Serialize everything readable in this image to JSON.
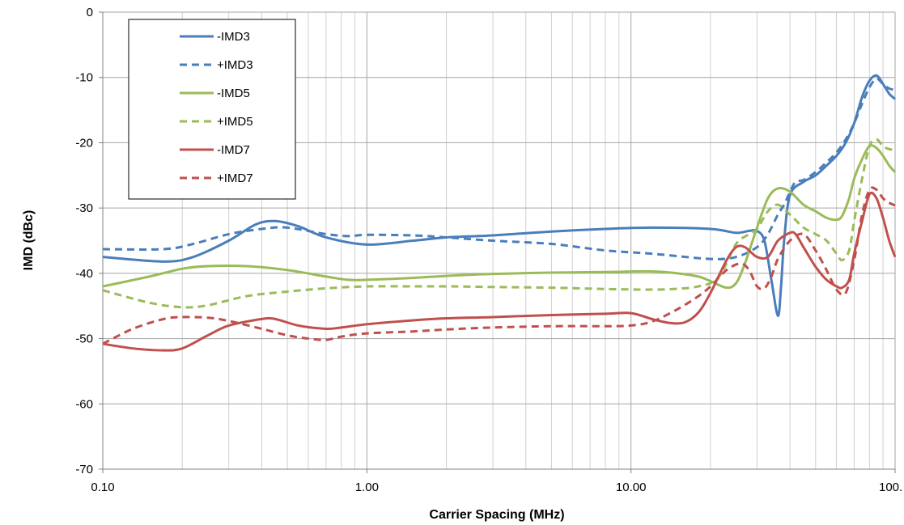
{
  "chart_data": {
    "type": "line",
    "xlabel": "Carrier Spacing (MHz)",
    "ylabel": "IMD (dBc)",
    "x_scale": "log",
    "xlim": [
      0.1,
      100
    ],
    "ylim": [
      -70,
      0
    ],
    "x_ticks": [
      0.1,
      1,
      10,
      100
    ],
    "x_tick_labels": [
      "0.10",
      "1.00",
      "10.00",
      "100."
    ],
    "y_ticks": [
      0,
      -10,
      -20,
      -30,
      -40,
      -50,
      -60,
      -70
    ],
    "y_tick_labels": [
      "0",
      "-10",
      "-20",
      "-30",
      "-40",
      "-50",
      "-60",
      "-70"
    ],
    "grid": true,
    "legend_position": "top-left",
    "series": [
      {
        "name": "-IMD3",
        "color": "#4a7ebb",
        "dash": "solid",
        "x": [
          0.1,
          0.17,
          0.22,
          0.3,
          0.38,
          0.45,
          0.55,
          0.7,
          1.0,
          1.5,
          2,
          3,
          5,
          8,
          12,
          20,
          25,
          28,
          30,
          32,
          34,
          36,
          37,
          38,
          40,
          45,
          50,
          55,
          60,
          65,
          70,
          75,
          80,
          85,
          90,
          95,
          100
        ],
        "y": [
          -37.5,
          -38.2,
          -37.5,
          -35,
          -32.5,
          -32,
          -32.8,
          -34.5,
          -35.6,
          -35,
          -34.5,
          -34.2,
          -33.6,
          -33.2,
          -33,
          -33.2,
          -33.8,
          -33.5,
          -33.5,
          -35,
          -41,
          -46.5,
          -42,
          -35,
          -28,
          -26,
          -25,
          -23.5,
          -22,
          -20,
          -17,
          -13,
          -10.5,
          -9.7,
          -11,
          -12.5,
          -13.3
        ]
      },
      {
        "name": "+IMD3",
        "color": "#4a7ebb",
        "dash": "dashed",
        "x": [
          0.1,
          0.17,
          0.22,
          0.3,
          0.4,
          0.5,
          0.7,
          0.85,
          1.0,
          1.5,
          2,
          3,
          5,
          8,
          12,
          20,
          25,
          30,
          33,
          36,
          38,
          40,
          42,
          45,
          50,
          55,
          60,
          65,
          70,
          75,
          80,
          85,
          90,
          95,
          100
        ],
        "y": [
          -36.3,
          -36.3,
          -35.5,
          -34,
          -33.2,
          -33,
          -34,
          -34.3,
          -34.1,
          -34.2,
          -34.5,
          -35,
          -35.5,
          -36.5,
          -37,
          -37.8,
          -37.5,
          -36,
          -34,
          -31,
          -29.5,
          -27.5,
          -26,
          -25.7,
          -24.5,
          -23,
          -21.5,
          -19.5,
          -17,
          -14,
          -11.5,
          -10.2,
          -11,
          -11.7,
          -11.9
        ]
      },
      {
        "name": "-IMD5",
        "color": "#9bbb59",
        "dash": "solid",
        "x": [
          0.1,
          0.15,
          0.2,
          0.25,
          0.35,
          0.5,
          0.7,
          0.85,
          1.0,
          1.5,
          2,
          3,
          5,
          8,
          12,
          15,
          18,
          20,
          23,
          25,
          27,
          30,
          33,
          36,
          40,
          45,
          50,
          55,
          60,
          63,
          67,
          70,
          75,
          80,
          85,
          90,
          95,
          100
        ],
        "y": [
          -42,
          -40.5,
          -39.3,
          -38.9,
          -38.9,
          -39.5,
          -40.5,
          -41,
          -41,
          -40.7,
          -40.4,
          -40.1,
          -39.9,
          -39.8,
          -39.7,
          -40,
          -40.5,
          -41.2,
          -42.2,
          -41.5,
          -38.5,
          -33,
          -28.5,
          -27,
          -27.5,
          -29.5,
          -30.5,
          -31.5,
          -31.8,
          -31.2,
          -28.5,
          -25.5,
          -22.5,
          -20.5,
          -20.8,
          -22,
          -23.5,
          -24.5
        ]
      },
      {
        "name": "+IMD5",
        "color": "#9bbb59",
        "dash": "dashed",
        "x": [
          0.1,
          0.15,
          0.2,
          0.25,
          0.35,
          0.5,
          0.7,
          1.0,
          1.5,
          2,
          3,
          5,
          8,
          12,
          16,
          18,
          20,
          22,
          25,
          28,
          30,
          33,
          36,
          40,
          45,
          50,
          55,
          60,
          63,
          67,
          70,
          75,
          80,
          85,
          90,
          95,
          100
        ],
        "y": [
          -42.6,
          -44.5,
          -45.2,
          -44.9,
          -43.5,
          -42.8,
          -42.3,
          -42,
          -42,
          -42,
          -42.1,
          -42.2,
          -42.4,
          -42.5,
          -42.3,
          -42,
          -41.5,
          -40,
          -35.5,
          -34,
          -33.2,
          -30.5,
          -29.5,
          -31,
          -33,
          -34,
          -35,
          -37,
          -38,
          -36.5,
          -32,
          -25.5,
          -20.5,
          -19.5,
          -20.5,
          -21,
          -21
        ]
      },
      {
        "name": "-IMD7",
        "color": "#c0504d",
        "dash": "solid",
        "x": [
          0.1,
          0.13,
          0.17,
          0.2,
          0.25,
          0.3,
          0.4,
          0.45,
          0.55,
          0.7,
          0.8,
          1.0,
          1.5,
          2,
          3,
          5,
          8,
          10,
          12,
          14,
          16,
          18,
          20,
          23,
          25,
          27,
          30,
          33,
          36,
          40,
          42,
          45,
          50,
          55,
          60,
          63,
          67,
          70,
          75,
          80,
          85,
          90,
          95,
          100
        ],
        "y": [
          -50.8,
          -51.5,
          -51.8,
          -51.5,
          -49.5,
          -48,
          -47,
          -47,
          -48,
          -48.5,
          -48.3,
          -47.8,
          -47.2,
          -46.9,
          -46.7,
          -46.4,
          -46.2,
          -46.1,
          -47,
          -47.6,
          -47.5,
          -46,
          -43,
          -38,
          -36,
          -36,
          -37.5,
          -37.5,
          -35,
          -33.8,
          -34,
          -36,
          -39,
          -41,
          -42,
          -42.2,
          -41,
          -37,
          -32,
          -27.9,
          -28.5,
          -31.5,
          -35,
          -37.5
        ]
      },
      {
        "name": "+IMD7",
        "color": "#c0504d",
        "dash": "dashed",
        "x": [
          0.1,
          0.13,
          0.17,
          0.2,
          0.25,
          0.3,
          0.4,
          0.5,
          0.6,
          0.7,
          0.8,
          1.0,
          1.5,
          2,
          3,
          5,
          8,
          10,
          12,
          15,
          18,
          20,
          23,
          26,
          28,
          30,
          32,
          34,
          36,
          40,
          45,
          50,
          55,
          60,
          65,
          70,
          75,
          80,
          85,
          90,
          95,
          100
        ],
        "y": [
          -50.8,
          -48.5,
          -47,
          -46.7,
          -46.8,
          -47.3,
          -48.5,
          -49.5,
          -50,
          -50.2,
          -49.7,
          -49.2,
          -48.9,
          -48.6,
          -48.3,
          -48.1,
          -48.1,
          -48,
          -47.4,
          -45.5,
          -43.5,
          -42,
          -39.5,
          -38.5,
          -39.5,
          -42,
          -42.3,
          -40.5,
          -37.8,
          -35,
          -34,
          -36.5,
          -39.5,
          -42.5,
          -43,
          -38,
          -31,
          -27.2,
          -27.2,
          -28.5,
          -29.2,
          -29.6
        ]
      }
    ]
  }
}
